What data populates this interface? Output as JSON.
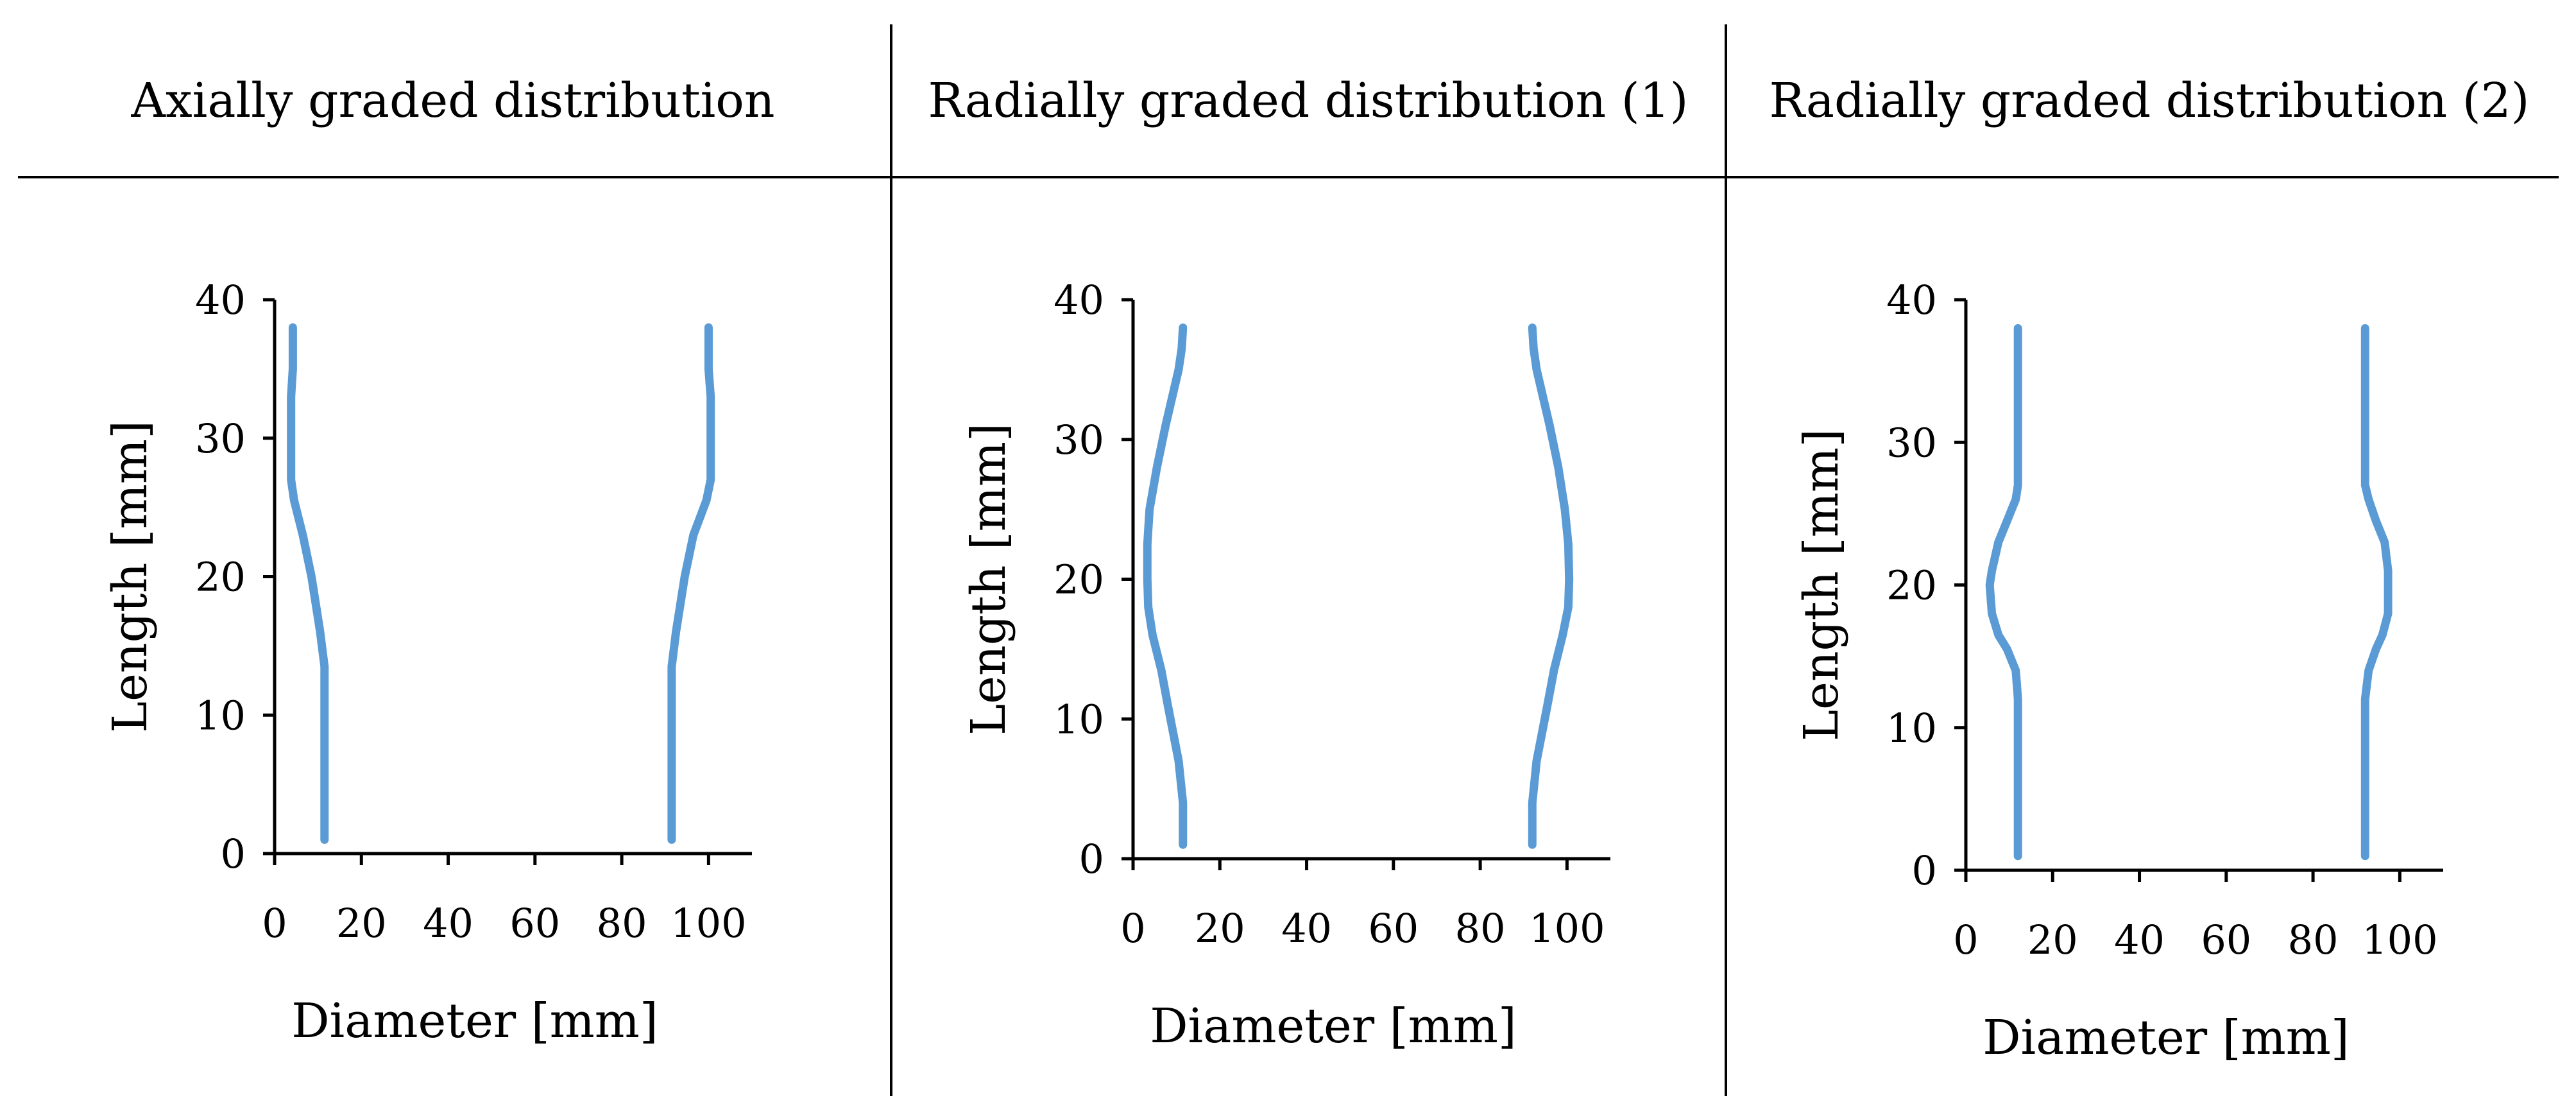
{
  "figure": {
    "series_color": "#5B9BD5",
    "axis_color": "#000000"
  },
  "chart_data": [
    {
      "type": "line",
      "title": "Axially graded distribution",
      "xlabel": "Diameter [mm]",
      "ylabel": "Length [mm]",
      "xlim": [
        0,
        110
      ],
      "ylim": [
        0,
        40
      ],
      "xticks": [
        0,
        20,
        40,
        60,
        80,
        100
      ],
      "yticks": [
        0,
        10,
        20,
        30,
        40
      ],
      "series": [
        {
          "name": "left",
          "points": [
            [
              11.5,
              1
            ],
            [
              11.5,
              13.5
            ],
            [
              10.5,
              16
            ],
            [
              8.5,
              20
            ],
            [
              6.5,
              23
            ],
            [
              4.5,
              25.5
            ],
            [
              3.8,
              27
            ],
            [
              3.8,
              33
            ],
            [
              4.2,
              35
            ],
            [
              4.2,
              38
            ]
          ]
        },
        {
          "name": "right",
          "points": [
            [
              91.5,
              1
            ],
            [
              91.5,
              13.5
            ],
            [
              92.5,
              16
            ],
            [
              94.5,
              20
            ],
            [
              96.5,
              23
            ],
            [
              99.5,
              25.5
            ],
            [
              100.5,
              27
            ],
            [
              100.5,
              33
            ],
            [
              100,
              35
            ],
            [
              100,
              38
            ]
          ]
        }
      ]
    },
    {
      "type": "line",
      "title": "Radially graded distribution (1)",
      "xlabel": "Diameter [mm]",
      "ylabel": "Length [mm]",
      "xlim": [
        0,
        110
      ],
      "ylim": [
        0,
        40
      ],
      "xticks": [
        0,
        20,
        40,
        60,
        80,
        100
      ],
      "yticks": [
        0,
        10,
        20,
        30,
        40
      ],
      "series": [
        {
          "name": "left",
          "points": [
            [
              11.5,
              1
            ],
            [
              11.5,
              4
            ],
            [
              10.5,
              7
            ],
            [
              8,
              11
            ],
            [
              6.5,
              13.5
            ],
            [
              4.5,
              16
            ],
            [
              3.5,
              18
            ],
            [
              3.3,
              20
            ],
            [
              3.3,
              22.5
            ],
            [
              3.8,
              25
            ],
            [
              5.5,
              28
            ],
            [
              7.5,
              31
            ],
            [
              10.5,
              35
            ],
            [
              11.2,
              36.5
            ],
            [
              11.5,
              38
            ]
          ]
        },
        {
          "name": "right",
          "points": [
            [
              92,
              1
            ],
            [
              92,
              4
            ],
            [
              93,
              7
            ],
            [
              95.5,
              11
            ],
            [
              97,
              13.5
            ],
            [
              99,
              16
            ],
            [
              100.3,
              18
            ],
            [
              100.5,
              20
            ],
            [
              100.3,
              22.5
            ],
            [
              99.5,
              25
            ],
            [
              98,
              28
            ],
            [
              96,
              31
            ],
            [
              93,
              35
            ],
            [
              92.3,
              36.5
            ],
            [
              92,
              38
            ]
          ]
        }
      ]
    },
    {
      "type": "line",
      "title": "Radially graded distribution (2)",
      "xlabel": "Diameter [mm]",
      "ylabel": "Length [mm]",
      "xlim": [
        0,
        110
      ],
      "ylim": [
        0,
        40
      ],
      "xticks": [
        0,
        20,
        40,
        60,
        80,
        100
      ],
      "yticks": [
        0,
        10,
        20,
        30,
        40
      ],
      "series": [
        {
          "name": "left",
          "points": [
            [
              12,
              1
            ],
            [
              12,
              12
            ],
            [
              11.5,
              14
            ],
            [
              9.5,
              15.5
            ],
            [
              7.5,
              16.5
            ],
            [
              6,
              18
            ],
            [
              5.5,
              20
            ],
            [
              6,
              21
            ],
            [
              7.5,
              23
            ],
            [
              9.5,
              24.5
            ],
            [
              11.5,
              26
            ],
            [
              12,
              27
            ],
            [
              12,
              38
            ]
          ]
        },
        {
          "name": "right",
          "points": [
            [
              92,
              1
            ],
            [
              92,
              12
            ],
            [
              92.8,
              14
            ],
            [
              94.5,
              15.5
            ],
            [
              96,
              16.5
            ],
            [
              97.3,
              18
            ],
            [
              97.3,
              21
            ],
            [
              96.5,
              23
            ],
            [
              94.5,
              24.5
            ],
            [
              92.8,
              26
            ],
            [
              92,
              27
            ],
            [
              92,
              38
            ]
          ]
        }
      ]
    }
  ]
}
